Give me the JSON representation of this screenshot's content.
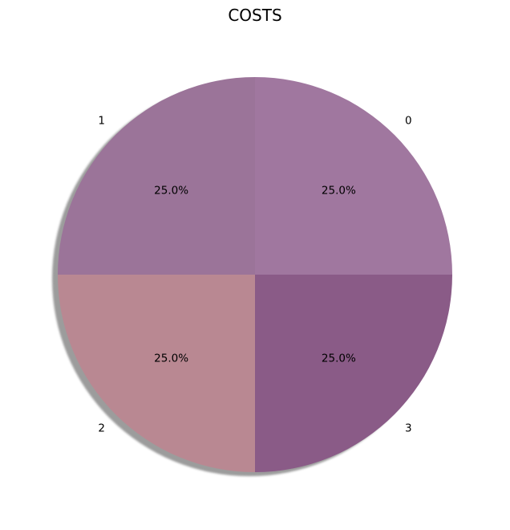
{
  "chart_data": {
    "type": "pie",
    "title": "COSTS",
    "labels": [
      "0",
      "1",
      "2",
      "3"
    ],
    "values": [
      25,
      25,
      25,
      25
    ],
    "percent_labels": [
      "25.0%",
      "25.0%",
      "25.0%",
      "25.0%"
    ],
    "colors": [
      "#a0779f",
      "#9b7499",
      "#b98892",
      "#8a5b87"
    ],
    "shadow": true,
    "start_angle": 0,
    "direction": "counterclockwise"
  }
}
